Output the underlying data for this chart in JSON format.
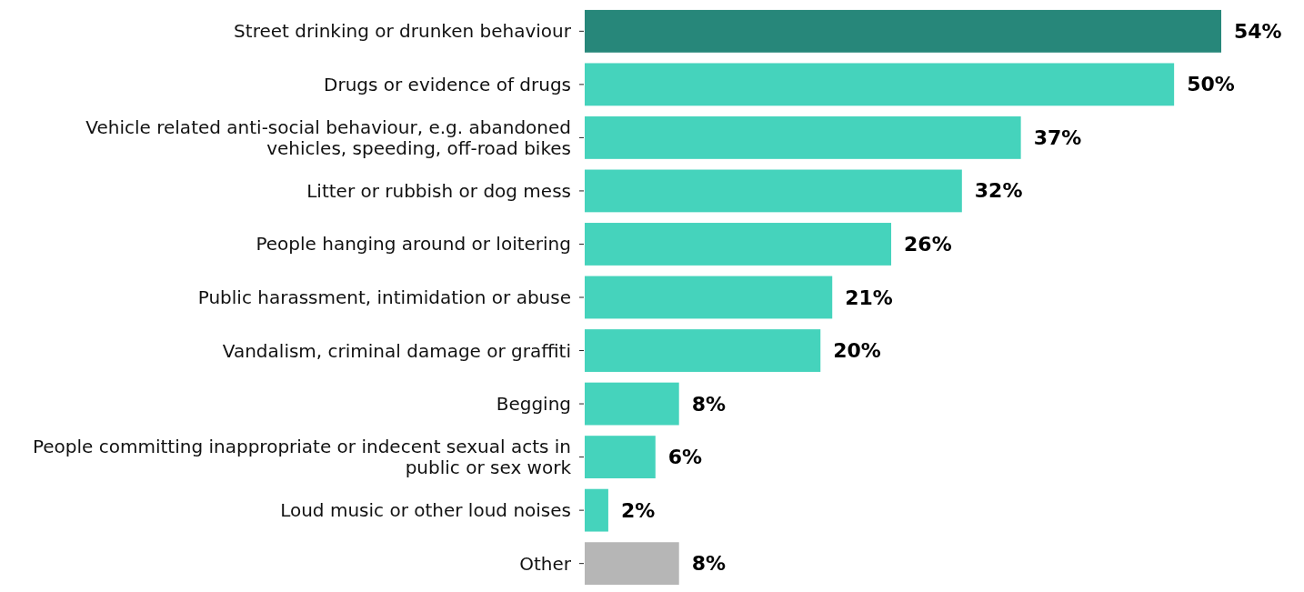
{
  "chart_data": {
    "type": "bar",
    "orientation": "horizontal",
    "categories": [
      "Street drinking or drunken behaviour",
      "Drugs or evidence of drugs",
      "Vehicle related anti-social behaviour, e.g. abandoned vehicles, speeding, off-road bikes",
      "Litter or rubbish or dog mess",
      "People hanging around or loitering",
      "Public harassment, intimidation or abuse",
      "Vandalism, criminal damage or graffiti",
      "Begging",
      "People committing inappropriate or indecent sexual acts in public or sex work",
      "Loud music or other loud noises",
      "Other"
    ],
    "values": [
      54,
      50,
      37,
      32,
      26,
      21,
      20,
      8,
      6,
      2,
      8
    ],
    "colors": [
      "#27877a",
      "#45d3bc",
      "#45d3bc",
      "#45d3bc",
      "#45d3bc",
      "#45d3bc",
      "#45d3bc",
      "#45d3bc",
      "#45d3bc",
      "#45d3bc",
      "#b6b6b6"
    ],
    "value_labels": [
      "54%",
      "50%",
      "37%",
      "32%",
      "26%",
      "21%",
      "20%",
      "8%",
      "6%",
      "2%",
      "8%"
    ],
    "xlim": [
      0,
      54
    ]
  }
}
